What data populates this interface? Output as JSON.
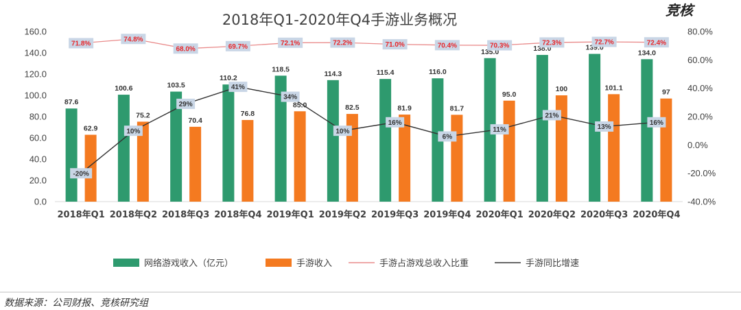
{
  "chart_data": {
    "type": "bar",
    "title": "2018年Q1-2020年Q4手游业务概况",
    "categories": [
      "2018年Q1",
      "2018年Q2",
      "2018年Q3",
      "2018年Q4",
      "2019年Q1",
      "2019年Q2",
      "2019年Q3",
      "2019年Q4",
      "2020年Q1",
      "2020年Q2",
      "2020年Q3",
      "2020年Q4"
    ],
    "series": [
      {
        "name": "网络游戏收入（亿元）",
        "type": "bar",
        "axis": "left",
        "color": "#2e9a6e",
        "values": [
          87.6,
          100.6,
          103.5,
          110.2,
          118.5,
          114.3,
          115.4,
          116.0,
          135.0,
          138.0,
          139.0,
          134.0
        ],
        "labels": [
          "87.6",
          "100.6",
          "103.5",
          "110.2",
          "118.5",
          "114.3",
          "115.4",
          "116.0",
          "135.0",
          "138.0",
          "139.0",
          "134.0"
        ]
      },
      {
        "name": "手游收入",
        "type": "bar",
        "axis": "left",
        "color": "#f47a20",
        "values": [
          62.9,
          75.2,
          70.4,
          76.8,
          85.0,
          82.5,
          81.9,
          81.7,
          95.0,
          100,
          101.1,
          97
        ],
        "labels": [
          "62.9",
          "75.2",
          "70.4",
          "76.8",
          "85.0",
          "82.5",
          "81.9",
          "81.7",
          "95.0",
          "100",
          "101.1",
          "97"
        ]
      },
      {
        "name": "手游占游戏总收入比重",
        "type": "line",
        "axis": "right",
        "color": "#e98a8a",
        "values": [
          71.8,
          74.8,
          68.0,
          69.7,
          72.1,
          72.2,
          71.0,
          70.4,
          70.3,
          72.3,
          72.7,
          72.4
        ],
        "labels": [
          "71.8%",
          "74.8%",
          "68.0%",
          "69.7%",
          "72.1%",
          "72.2%",
          "71.0%",
          "70.4%",
          "70.3%",
          "72.3%",
          "72.7%",
          "72.4%"
        ]
      },
      {
        "name": "手游同比增速",
        "type": "line",
        "axis": "right",
        "color": "#333333",
        "values": [
          -20,
          10,
          29,
          41,
          34,
          10,
          16,
          6,
          11,
          21,
          13,
          16
        ],
        "labels": [
          "-20%",
          "10%",
          "29%",
          "41%",
          "34%",
          "10%",
          "16%",
          "6%",
          "11%",
          "21%",
          "13%",
          "16%"
        ]
      }
    ],
    "y_left": {
      "min": 0,
      "max": 160,
      "step": 20,
      "ticks": [
        "0.0",
        "20.0",
        "40.0",
        "60.0",
        "80.0",
        "100.0",
        "120.0",
        "140.0",
        "160.0"
      ]
    },
    "y_right": {
      "min": -40,
      "max": 80,
      "step": 20,
      "ticks": [
        "-40.0%",
        "-20.0%",
        "0.0%",
        "20.0%",
        "40.0%",
        "60.0%",
        "80.0%"
      ]
    },
    "grid": false,
    "legend_position": "bottom"
  },
  "brand": "竞核",
  "source": "数据来源：公司财报、竞核研究组",
  "colors": {
    "label_box": "#c9d6e6",
    "axis": "#d9d9d9",
    "divider": "#bfbfbf"
  }
}
